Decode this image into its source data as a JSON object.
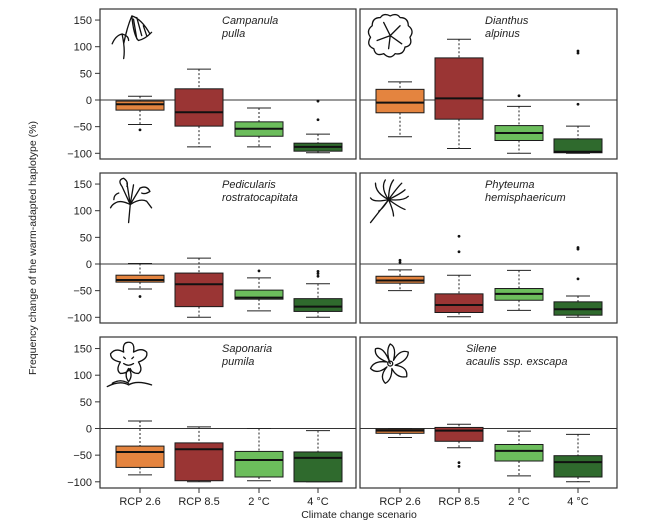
{
  "chart_data": {
    "type": "box",
    "ylabel": "Frequency change of the warm-adapted haplotype (%)",
    "xlabel": "Climate change scenario",
    "categories": [
      "RCP 2.6",
      "RCP 8.5",
      "2 °C",
      "4 °C"
    ],
    "category_colors": [
      "#E4843F",
      "#9A3534",
      "#6CBD5C",
      "#2F6A2D"
    ],
    "ylim": [
      -105,
      170
    ],
    "yticks": [
      150,
      100,
      50,
      0,
      -50,
      -100
    ],
    "ytick_labels": [
      "150",
      "100",
      "50",
      "0",
      "−50",
      "−100"
    ],
    "reference_line": 0,
    "panels": [
      {
        "species_line1": "Campanula",
        "species_line2": "pulla",
        "icon": "bellflower-icon",
        "boxes": [
          {
            "whisker_low": -46,
            "q1": -19,
            "median": -8,
            "q3": -2,
            "whisker_high": 7,
            "outliers": [
              -56
            ]
          },
          {
            "whisker_low": -88,
            "q1": -49,
            "median": -23,
            "q3": 21,
            "whisker_high": 58,
            "outliers": []
          },
          {
            "whisker_low": -88,
            "q1": -68,
            "median": -54,
            "q3": -41,
            "whisker_high": -15,
            "outliers": []
          },
          {
            "whisker_low": -99,
            "q1": -96,
            "median": -88,
            "q3": -81,
            "whisker_high": -64,
            "outliers": [
              -2,
              -37
            ]
          }
        ]
      },
      {
        "species_line1": "Dianthus",
        "species_line2": "alpinus",
        "icon": "carnation-icon",
        "boxes": [
          {
            "whisker_low": -69,
            "q1": -24,
            "median": -5,
            "q3": 20,
            "whisker_high": 34,
            "outliers": []
          },
          {
            "whisker_low": -91,
            "q1": -36,
            "median": 3,
            "q3": 79,
            "whisker_high": 114,
            "outliers": []
          },
          {
            "whisker_low": -100,
            "q1": -76,
            "median": -62,
            "q3": -48,
            "whisker_high": -12,
            "outliers": [
              8
            ]
          },
          {
            "whisker_low": -100,
            "q1": -99,
            "median": -97,
            "q3": -73,
            "whisker_high": -49,
            "outliers": [
              92,
              88,
              -8
            ]
          }
        ]
      },
      {
        "species_line1": "Pedicularis",
        "species_line2": "rostratocapitata",
        "icon": "lousewort-icon",
        "boxes": [
          {
            "whisker_low": -47,
            "q1": -34,
            "median": -30,
            "q3": -21,
            "whisker_high": 1,
            "outliers": [
              -61
            ]
          },
          {
            "whisker_low": -100,
            "q1": -80,
            "median": -38,
            "q3": -17,
            "whisker_high": 11,
            "outliers": []
          },
          {
            "whisker_low": -88,
            "q1": -66,
            "median": -63,
            "q3": -49,
            "whisker_high": -26,
            "outliers": [
              -13
            ]
          },
          {
            "whisker_low": -100,
            "q1": -89,
            "median": -80,
            "q3": -65,
            "whisker_high": -37,
            "outliers": [
              -14,
              -18,
              -23
            ]
          }
        ]
      },
      {
        "species_line1": "Phyteuma",
        "species_line2": "hemisphaericum",
        "icon": "rampion-icon",
        "boxes": [
          {
            "whisker_low": -50,
            "q1": -36,
            "median": -31,
            "q3": -23,
            "whisker_high": -11,
            "outliers": [
              7,
              3
            ]
          },
          {
            "whisker_low": -99,
            "q1": -91,
            "median": -77,
            "q3": -56,
            "whisker_high": -21,
            "outliers": [
              52,
              23
            ]
          },
          {
            "whisker_low": -87,
            "q1": -68,
            "median": -56,
            "q3": -46,
            "whisker_high": -12,
            "outliers": []
          },
          {
            "whisker_low": -100,
            "q1": -96,
            "median": -85,
            "q3": -71,
            "whisker_high": -60,
            "outliers": [
              31,
              28,
              -28
            ]
          }
        ]
      },
      {
        "species_line1": "Saponaria",
        "species_line2": "pumila",
        "icon": "soapwort-icon",
        "boxes": [
          {
            "whisker_low": -87,
            "q1": -73,
            "median": -44,
            "q3": -33,
            "whisker_high": 14,
            "outliers": []
          },
          {
            "whisker_low": -100,
            "q1": -98,
            "median": -39,
            "q3": -27,
            "whisker_high": 3,
            "outliers": []
          },
          {
            "whisker_low": -98,
            "q1": -91,
            "median": -59,
            "q3": -43,
            "whisker_high": 0,
            "outliers": []
          },
          {
            "whisker_low": -100,
            "q1": -100,
            "median": -55,
            "q3": -44,
            "whisker_high": -4,
            "outliers": []
          }
        ]
      },
      {
        "species_line1": "Silene",
        "species_line2": "acaulis ssp. exscapa",
        "icon": "campion-icon",
        "boxes": [
          {
            "whisker_low": -17,
            "q1": -9,
            "median": -4,
            "q3": -1,
            "whisker_high": 0,
            "outliers": []
          },
          {
            "whisker_low": -36,
            "q1": -24,
            "median": -4,
            "q3": 2,
            "whisker_high": 8,
            "outliers": [
              -64,
              -71
            ]
          },
          {
            "whisker_low": -89,
            "q1": -61,
            "median": -42,
            "q3": -30,
            "whisker_high": -5,
            "outliers": []
          },
          {
            "whisker_low": -100,
            "q1": -91,
            "median": -63,
            "q3": -51,
            "whisker_high": -11,
            "outliers": []
          }
        ]
      }
    ]
  }
}
